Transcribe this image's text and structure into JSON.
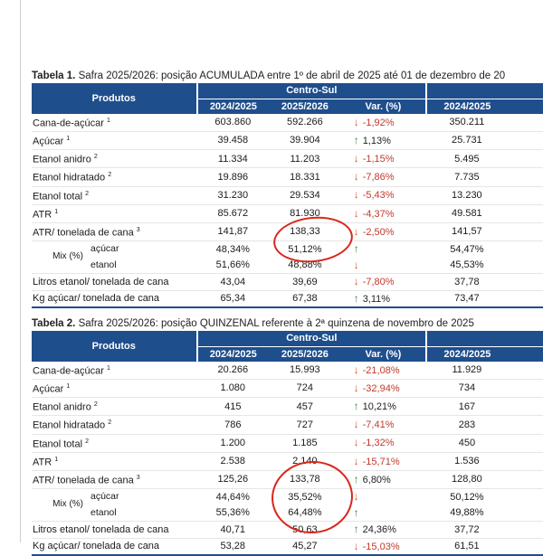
{
  "colors": {
    "header_bg": "#1f4e8c",
    "down_arrow": "#d9541e",
    "up_arrow": "#3c8a3c",
    "negative_text": "#c0392b",
    "annotation_circle": "#d9261c"
  },
  "table1": {
    "caption_bold": "Tabela 1.",
    "caption_text": " Safra 2025/2026: posição ACUMULADA entre 1º de abril de 2025 até 01 de dezembro de 20",
    "header": {
      "produtos": "Produtos",
      "region": "Centro-Sul",
      "col_prev": "2024/2025",
      "col_curr": "2025/2026",
      "col_var": "Var. (%)",
      "col_extra": "2024/2025"
    },
    "rows": [
      {
        "label": "Cana-de-açúcar",
        "sup": "1",
        "prev": "603.860",
        "curr": "592.266",
        "dir": "down",
        "var": "-1,92%",
        "extra": "350.211"
      },
      {
        "label": "Açúcar",
        "sup": "1",
        "prev": "39.458",
        "curr": "39.904",
        "dir": "up",
        "var": "1,13%",
        "extra": "25.731"
      },
      {
        "label": "Etanol anidro",
        "sup": "2",
        "prev": "11.334",
        "curr": "11.203",
        "dir": "down",
        "var": "-1,15%",
        "extra": "5.495"
      },
      {
        "label": "Etanol hidratado",
        "sup": "2",
        "prev": "19.896",
        "curr": "18.331",
        "dir": "down",
        "var": "-7,86%",
        "extra": "7.735"
      },
      {
        "label": "Etanol total",
        "sup": "2",
        "prev": "31.230",
        "curr": "29.534",
        "dir": "down",
        "var": "-5,43%",
        "extra": "13.230"
      },
      {
        "label": "ATR",
        "sup": "1",
        "prev": "85.672",
        "curr": "81.930",
        "dir": "down",
        "var": "-4,37%",
        "extra": "49.581"
      },
      {
        "label": "ATR/ tonelada de cana",
        "sup": "3",
        "prev": "141,87",
        "curr": "138,33",
        "dir": "down",
        "var": "-2,50%",
        "extra": "141,57"
      }
    ],
    "mix": {
      "label": "Mix (%)",
      "acucar": {
        "label": "açúcar",
        "prev": "48,34%",
        "curr": "51,12%",
        "dir": "up",
        "extra": "54,47%"
      },
      "etanol": {
        "label": "etanol",
        "prev": "51,66%",
        "curr": "48,88%",
        "dir": "down",
        "extra": "45,53%"
      }
    },
    "tail": [
      {
        "label": "Litros etanol/ tonelada de cana",
        "prev": "43,04",
        "curr": "39,69",
        "dir": "down",
        "var": "-7,80%",
        "extra": "37,78"
      },
      {
        "label": "Kg açúcar/ tonelada de cana",
        "prev": "65,34",
        "curr": "67,38",
        "dir": "up",
        "var": "3,11%",
        "extra": "73,47"
      }
    ]
  },
  "table2": {
    "caption_bold": "Tabela 2.",
    "caption_text": " Safra 2025/2026: posição QUINZENAL referente à 2ª quinzena de novembro de 2025",
    "header": {
      "produtos": "Produtos",
      "region": "Centro-Sul",
      "col_prev": "2024/2025",
      "col_curr": "2025/2026",
      "col_var": "Var. (%)",
      "col_extra": "2024/2025"
    },
    "rows": [
      {
        "label": "Cana-de-açúcar",
        "sup": "1",
        "prev": "20.266",
        "curr": "15.993",
        "dir": "down",
        "var": "-21,08%",
        "extra": "11.929"
      },
      {
        "label": "Açúcar",
        "sup": "1",
        "prev": "1.080",
        "curr": "724",
        "dir": "down",
        "var": "-32,94%",
        "extra": "734"
      },
      {
        "label": "Etanol anidro",
        "sup": "2",
        "prev": "415",
        "curr": "457",
        "dir": "up",
        "var": "10,21%",
        "extra": "167"
      },
      {
        "label": "Etanol hidratado",
        "sup": "2",
        "prev": "786",
        "curr": "727",
        "dir": "down",
        "var": "-7,41%",
        "extra": "283"
      },
      {
        "label": "Etanol total",
        "sup": "2",
        "prev": "1.200",
        "curr": "1.185",
        "dir": "down",
        "var": "-1,32%",
        "extra": "450"
      },
      {
        "label": "ATR",
        "sup": "1",
        "prev": "2.538",
        "curr": "2.140",
        "dir": "down",
        "var": "-15,71%",
        "extra": "1.536"
      },
      {
        "label": "ATR/ tonelada de cana",
        "sup": "3",
        "prev": "125,26",
        "curr": "133,78",
        "dir": "up",
        "var": "6,80%",
        "extra": "128,80"
      }
    ],
    "mix": {
      "label": "Mix (%)",
      "acucar": {
        "label": "açúcar",
        "prev": "44,64%",
        "curr": "35,52%",
        "dir": "down",
        "extra": "50,12%"
      },
      "etanol": {
        "label": "etanol",
        "prev": "55,36%",
        "curr": "64,48%",
        "dir": "up",
        "extra": "49,88%"
      }
    },
    "tail": [
      {
        "label": "Litros etanol/ tonelada de cana",
        "prev": "40,71",
        "curr": "50,63",
        "dir": "up",
        "var": "24,36%",
        "extra": "37,72"
      },
      {
        "label": "Kg açúcar/ tonelada de cana",
        "prev": "53,28",
        "curr": "45,27",
        "dir": "down",
        "var": "-15,03%",
        "extra": "61,51"
      }
    ]
  }
}
